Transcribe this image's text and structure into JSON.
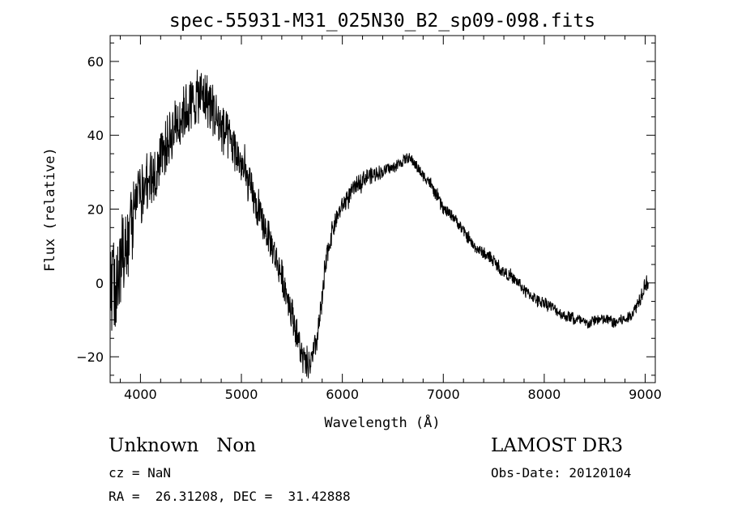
{
  "chart_data": {
    "type": "line",
    "title": "spec-55931-M31_025N30_B2_sp09-098.fits",
    "xlabel": "Wavelength (Å)",
    "ylabel": "Flux (relative)",
    "xlim": [
      3700,
      9100
    ],
    "ylim": [
      -27,
      67
    ],
    "x_ticks": [
      4000,
      5000,
      6000,
      7000,
      8000,
      9000
    ],
    "y_ticks": [
      -20,
      0,
      20,
      40,
      60
    ],
    "grid": false,
    "series": [
      {
        "x": [
          3700,
          3750,
          3800,
          3850,
          3900,
          3950,
          4000,
          4050,
          4100,
          4150,
          4200,
          4250,
          4300,
          4350,
          4400,
          4450,
          4500,
          4550,
          4600,
          4650,
          4700,
          4750,
          4800,
          4850,
          4900,
          4950,
          5000,
          5050,
          5100,
          5150,
          5200,
          5250,
          5300,
          5350,
          5400,
          5450,
          5500,
          5550,
          5600,
          5650,
          5700,
          5750,
          5800,
          5850,
          5900,
          5950,
          6000,
          6050,
          6100,
          6150,
          6200,
          6250,
          6300,
          6350,
          6400,
          6450,
          6500,
          6550,
          6600,
          6650,
          6700,
          6750,
          6800,
          6850,
          6900,
          6950,
          7000,
          7050,
          7100,
          7150,
          7200,
          7250,
          7300,
          7350,
          7400,
          7450,
          7500,
          7550,
          7600,
          7650,
          7700,
          7750,
          7800,
          7850,
          7900,
          7950,
          8000,
          8050,
          8100,
          8150,
          8200,
          8250,
          8300,
          8350,
          8400,
          8450,
          8500,
          8550,
          8600,
          8650,
          8700,
          8750,
          8800,
          8850,
          8900,
          8950,
          9000
        ],
        "y": [
          -5,
          0,
          5,
          10,
          14,
          20,
          24,
          27,
          28,
          30,
          33,
          37,
          40,
          43,
          45,
          47,
          48,
          50,
          51,
          50,
          48,
          45,
          42,
          40,
          38,
          35,
          32,
          28,
          25,
          20,
          17,
          14,
          10,
          6,
          2,
          -3,
          -8,
          -14,
          -20,
          -23,
          -21,
          -15,
          -5,
          8,
          14,
          18,
          21,
          23,
          25,
          27,
          28,
          29,
          29,
          30,
          30,
          31,
          31,
          32,
          33,
          34,
          33,
          31,
          29,
          28,
          25,
          23,
          20,
          19,
          18,
          16,
          14,
          12,
          10,
          9,
          8,
          7,
          6,
          4,
          3,
          2,
          1,
          0,
          -2,
          -3,
          -4,
          -5,
          -5,
          -6,
          -7,
          -8,
          -9,
          -9,
          -10,
          -10,
          -11,
          -11,
          -10,
          -10,
          -10,
          -10,
          -11,
          -10,
          -10,
          -9,
          -7,
          -4,
          0
        ],
        "noise_amplitude": [
          18,
          18,
          16,
          15,
          14,
          13,
          12,
          11,
          10,
          10,
          10,
          10,
          10,
          10,
          10,
          10,
          10,
          10,
          10,
          10,
          10,
          10,
          9,
          9,
          8,
          8,
          7,
          7,
          7,
          6,
          6,
          6,
          6,
          6,
          6,
          6,
          6,
          6,
          6,
          5,
          5,
          5,
          5,
          4,
          4,
          3,
          3,
          3,
          3,
          3,
          3,
          3,
          3,
          3,
          2,
          2,
          2,
          2,
          2,
          2,
          2,
          2,
          2,
          2,
          2,
          2,
          2,
          2,
          2,
          2,
          2,
          2,
          2,
          2,
          2,
          2,
          2,
          2,
          2,
          2,
          2,
          2,
          2,
          2,
          2,
          2,
          2,
          2,
          2,
          2,
          2,
          2,
          2,
          2,
          2,
          2,
          2,
          2,
          2,
          2,
          2,
          2,
          2,
          2,
          2,
          3,
          3
        ]
      }
    ]
  },
  "info": {
    "class_line": "Unknown   Non",
    "survey": "LAMOST DR3",
    "cz": "cz = NaN",
    "obs_date": "Obs-Date: 20120104",
    "coords": "RA =  26.31208, DEC =  31.42888"
  }
}
